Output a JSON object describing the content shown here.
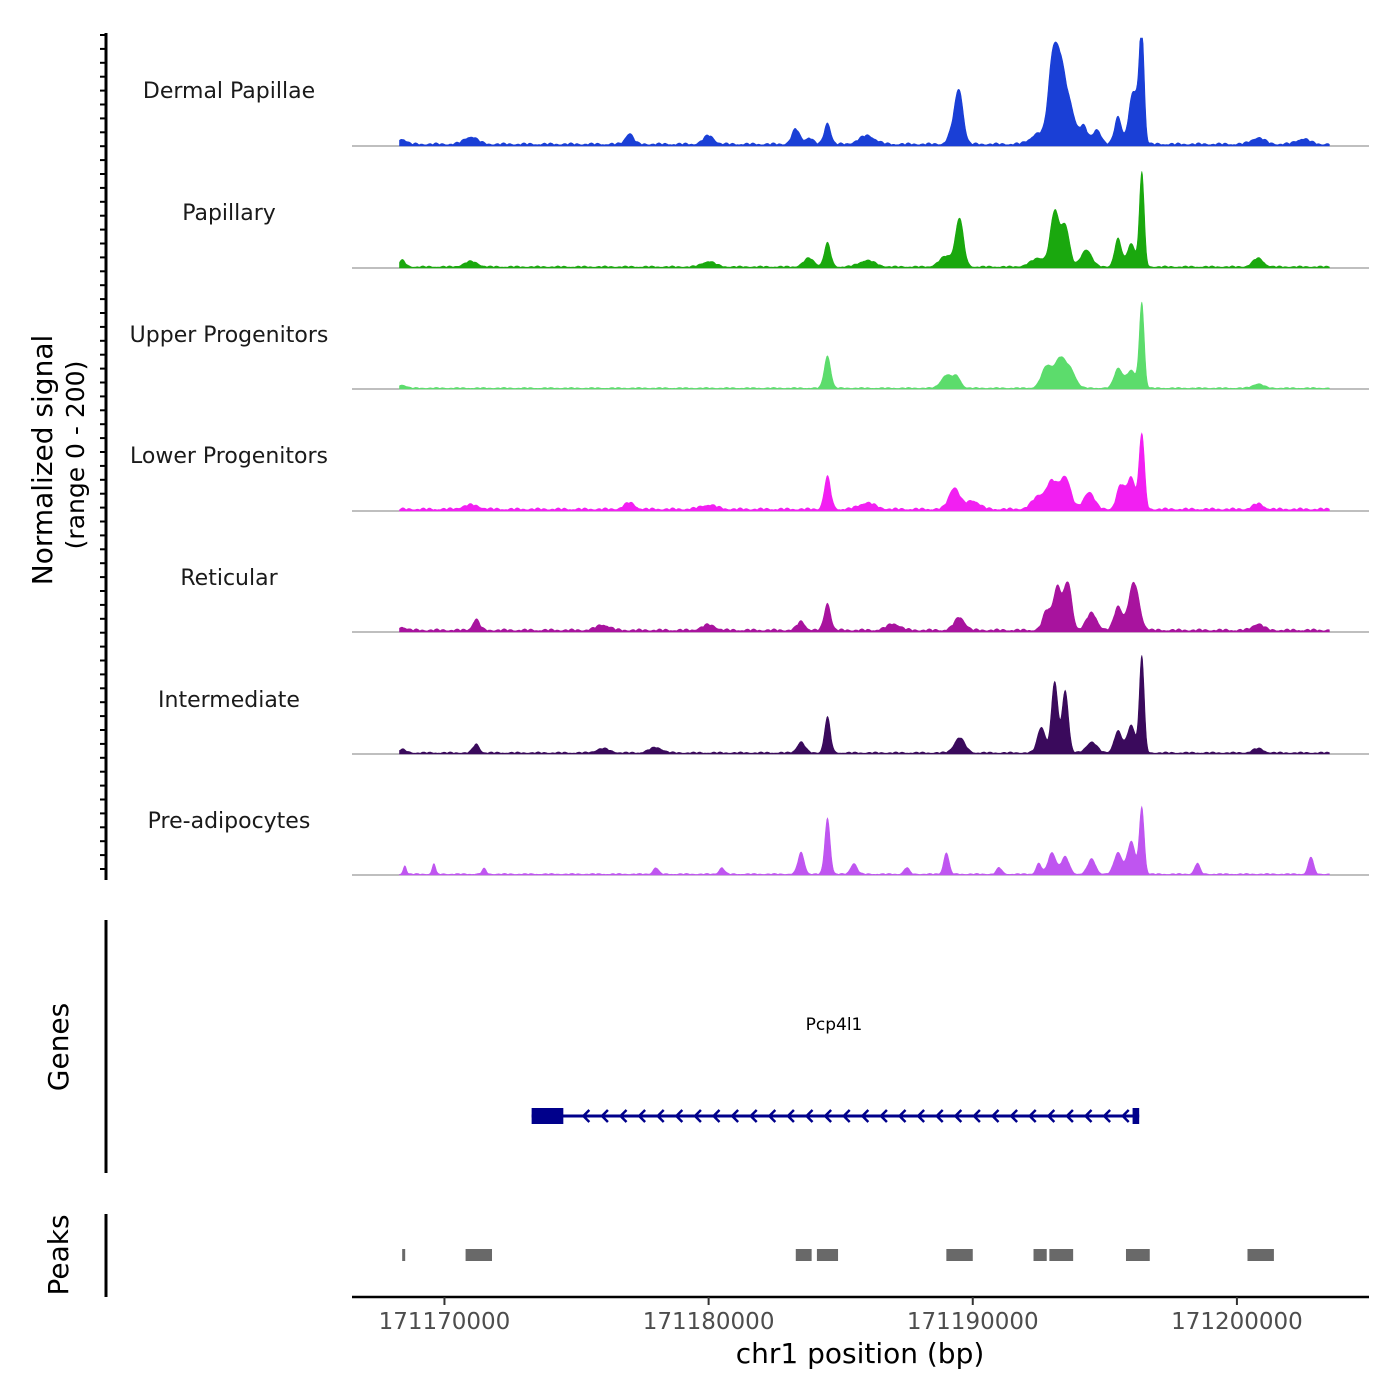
{
  "chart_data": {
    "type": "area",
    "title": "",
    "ylabel_line1": "Normalized signal",
    "ylabel_line2": "(range 0 - 200)",
    "y_range": [
      0,
      200
    ],
    "xlabel": "chr1 position (bp)",
    "x_range": [
      171166500,
      171205000
    ],
    "x_ticks": [
      {
        "value": 171170000,
        "label": "171170000"
      },
      {
        "value": 171180000,
        "label": "171180000"
      },
      {
        "value": 171190000,
        "label": "171190000"
      },
      {
        "value": 171200000,
        "label": "171200000"
      }
    ],
    "signal_extent": [
      171168300,
      171203500
    ],
    "tracks": [
      {
        "name": "Dermal Papillae",
        "color": "#1a3fd6",
        "base": 3,
        "peaks": [
          [
            171168400,
            5,
            150
          ],
          [
            171171000,
            7,
            250
          ],
          [
            171177000,
            10,
            150
          ],
          [
            171180000,
            8,
            200
          ],
          [
            171183300,
            14,
            150
          ],
          [
            171183800,
            6,
            150
          ],
          [
            171184500,
            20,
            120
          ],
          [
            171186000,
            8,
            300
          ],
          [
            171189300,
            16,
            180
          ],
          [
            171189500,
            42,
            150
          ],
          [
            171192500,
            10,
            300
          ],
          [
            171193000,
            60,
            160
          ],
          [
            171193300,
            72,
            200
          ],
          [
            171193700,
            30,
            200
          ],
          [
            171194200,
            16,
            150
          ],
          [
            171194700,
            14,
            150
          ],
          [
            171195500,
            26,
            130
          ],
          [
            171196000,
            30,
            140
          ],
          [
            171196400,
            100,
            90
          ],
          [
            171196200,
            32,
            150
          ],
          [
            171200800,
            6,
            250
          ],
          [
            171202500,
            5,
            250
          ]
        ]
      },
      {
        "name": "Papillary",
        "color": "#1aa80e",
        "base": 2,
        "peaks": [
          [
            171168400,
            6,
            120
          ],
          [
            171171000,
            5,
            250
          ],
          [
            171180000,
            5,
            250
          ],
          [
            171183800,
            8,
            200
          ],
          [
            171184500,
            22,
            120
          ],
          [
            171186000,
            6,
            300
          ],
          [
            171189000,
            10,
            250
          ],
          [
            171189500,
            44,
            150
          ],
          [
            171192500,
            8,
            300
          ],
          [
            171193100,
            50,
            160
          ],
          [
            171193500,
            38,
            160
          ],
          [
            171194300,
            16,
            200
          ],
          [
            171195500,
            26,
            130
          ],
          [
            171196000,
            22,
            150
          ],
          [
            171196400,
            88,
            90
          ],
          [
            171200800,
            8,
            200
          ]
        ]
      },
      {
        "name": "Upper Progenitors",
        "color": "#5cdc6c",
        "base": 1.5,
        "peaks": [
          [
            171168400,
            3,
            150
          ],
          [
            171184500,
            30,
            120
          ],
          [
            171189000,
            12,
            200
          ],
          [
            171189400,
            10,
            150
          ],
          [
            171192800,
            20,
            200
          ],
          [
            171193300,
            26,
            200
          ],
          [
            171193700,
            16,
            200
          ],
          [
            171195500,
            18,
            150
          ],
          [
            171196000,
            16,
            200
          ],
          [
            171196400,
            78,
            90
          ],
          [
            171200800,
            4,
            200
          ]
        ]
      },
      {
        "name": "Lower Progenitors",
        "color": "#f21ff2",
        "base": 3,
        "peaks": [
          [
            171171000,
            4,
            300
          ],
          [
            171177000,
            6,
            200
          ],
          [
            171180000,
            4,
            300
          ],
          [
            171184500,
            30,
            120
          ],
          [
            171186000,
            6,
            300
          ],
          [
            171189300,
            20,
            200
          ],
          [
            171190000,
            8,
            250
          ],
          [
            171192500,
            12,
            250
          ],
          [
            171193000,
            24,
            200
          ],
          [
            171193500,
            30,
            200
          ],
          [
            171194400,
            16,
            200
          ],
          [
            171195600,
            22,
            150
          ],
          [
            171196000,
            30,
            150
          ],
          [
            171196400,
            70,
            100
          ],
          [
            171200800,
            5,
            200
          ]
        ]
      },
      {
        "name": "Reticular",
        "color": "#a8139e",
        "base": 3,
        "peaks": [
          [
            171168400,
            3,
            150
          ],
          [
            171171200,
            10,
            130
          ],
          [
            171176000,
            5,
            250
          ],
          [
            171180000,
            5,
            250
          ],
          [
            171183500,
            8,
            150
          ],
          [
            171184500,
            25,
            120
          ],
          [
            171187000,
            6,
            250
          ],
          [
            171189500,
            12,
            200
          ],
          [
            171192800,
            18,
            150
          ],
          [
            171193200,
            40,
            150
          ],
          [
            171193600,
            44,
            150
          ],
          [
            171194500,
            16,
            200
          ],
          [
            171195500,
            22,
            150
          ],
          [
            171196100,
            44,
            200
          ],
          [
            171200800,
            6,
            200
          ]
        ]
      },
      {
        "name": "Intermediate",
        "color": "#3a0a5c",
        "base": 2,
        "peaks": [
          [
            171168400,
            3,
            150
          ],
          [
            171171200,
            8,
            120
          ],
          [
            171176000,
            4,
            250
          ],
          [
            171178000,
            5,
            250
          ],
          [
            171183500,
            10,
            150
          ],
          [
            171184500,
            33,
            110
          ],
          [
            171189500,
            14,
            200
          ],
          [
            171192600,
            24,
            150
          ],
          [
            171193100,
            66,
            120
          ],
          [
            171193500,
            58,
            120
          ],
          [
            171194500,
            10,
            200
          ],
          [
            171195500,
            20,
            150
          ],
          [
            171196000,
            26,
            150
          ],
          [
            171196400,
            90,
            90
          ],
          [
            171200800,
            4,
            200
          ]
        ]
      },
      {
        "name": "Pre-adipocytes",
        "color": "#bf55f0",
        "base": 1.5,
        "peaks": [
          [
            171168500,
            8,
            60
          ],
          [
            171169600,
            10,
            60
          ],
          [
            171171500,
            5,
            80
          ],
          [
            171178000,
            6,
            100
          ],
          [
            171180500,
            6,
            100
          ],
          [
            171183500,
            20,
            120
          ],
          [
            171184500,
            52,
            100
          ],
          [
            171185500,
            10,
            120
          ],
          [
            171187500,
            6,
            100
          ],
          [
            171189000,
            20,
            100
          ],
          [
            171191000,
            6,
            100
          ],
          [
            171192500,
            10,
            100
          ],
          [
            171193000,
            20,
            150
          ],
          [
            171193500,
            16,
            150
          ],
          [
            171194500,
            14,
            150
          ],
          [
            171195500,
            20,
            150
          ],
          [
            171196000,
            30,
            150
          ],
          [
            171196400,
            62,
            90
          ],
          [
            171198500,
            10,
            100
          ],
          [
            171202800,
            16,
            100
          ]
        ]
      }
    ]
  },
  "genes_panel": {
    "title": "Genes",
    "gene": {
      "name": "Pcp4l1",
      "start": 171173300,
      "end": 171196300,
      "strand": "-",
      "color": "#00008b",
      "exons": [
        [
          171173300,
          171174500
        ],
        [
          171196050,
          171196300
        ]
      ]
    }
  },
  "peaks_panel": {
    "title": "Peaks",
    "color": "#696969",
    "regions": [
      [
        171168400,
        171168500
      ],
      [
        171170800,
        171171800
      ],
      [
        171183300,
        171183900
      ],
      [
        171184100,
        171184900
      ],
      [
        171189000,
        171190000
      ],
      [
        171192300,
        171192800
      ],
      [
        171192900,
        171193800
      ],
      [
        171195800,
        171196700
      ],
      [
        171200400,
        171201400
      ]
    ]
  }
}
